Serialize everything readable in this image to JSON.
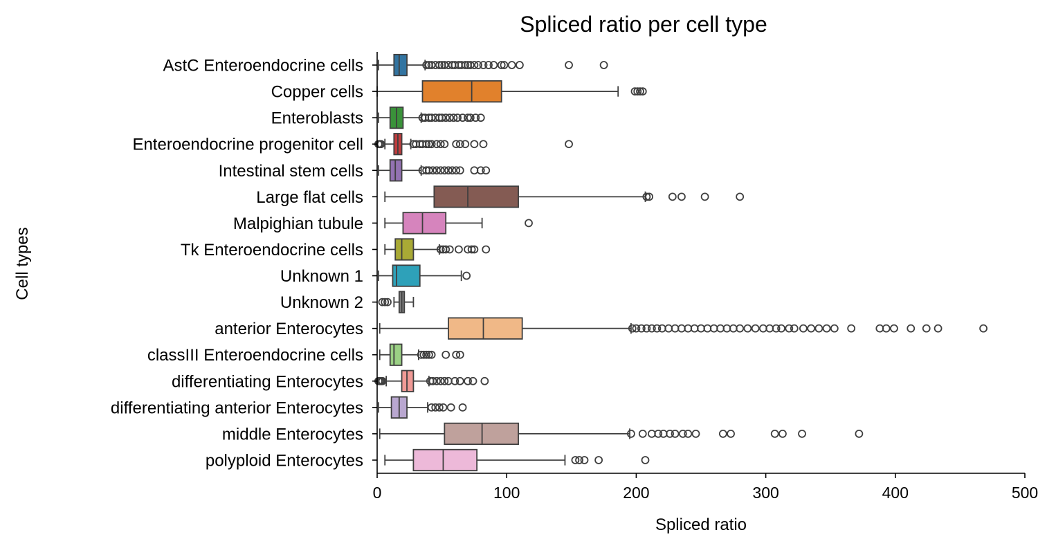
{
  "chart_data": {
    "type": "box",
    "orientation": "horizontal",
    "title": "Spliced ratio per cell type",
    "xlabel": "Spliced ratio",
    "ylabel": "Cell types",
    "xlim": [
      0,
      500
    ],
    "xticks": [
      0,
      100,
      200,
      300,
      400,
      500
    ],
    "grid": false,
    "legend": "none",
    "series": [
      {
        "category": "AstC Enteroendocrine cells",
        "color": "#3274a1",
        "min": 1,
        "q1": 13,
        "median": 17,
        "q3": 23,
        "max": 37,
        "outliers": [
          38,
          40,
          42,
          45,
          48,
          50,
          52,
          55,
          58,
          60,
          63,
          65,
          68,
          70,
          72,
          75,
          78,
          82,
          86,
          90,
          96,
          98,
          104,
          110,
          148,
          175
        ]
      },
      {
        "category": "Copper cells",
        "color": "#e1812c",
        "min": 0,
        "q1": 35,
        "median": 73,
        "q3": 96,
        "max": 186,
        "outliers": [
          199,
          201,
          203,
          205
        ]
      },
      {
        "category": "Enteroblasts",
        "color": "#3a923a",
        "min": 1,
        "q1": 10,
        "median": 15,
        "q3": 20,
        "max": 34,
        "outliers": [
          35,
          37,
          40,
          42,
          45,
          48,
          50,
          53,
          56,
          59,
          62,
          66,
          70,
          72,
          76,
          80
        ]
      },
      {
        "category": "Enteroendocrine progenitor cell",
        "color": "#c03d3e",
        "min": 6,
        "q1": 13,
        "median": 16,
        "q3": 19,
        "max": 26,
        "outliers": [
          1,
          2,
          3,
          28,
          30,
          33,
          35,
          38,
          40,
          42,
          46,
          49,
          52,
          61,
          64,
          68,
          75,
          82,
          148
        ]
      },
      {
        "category": "Intestinal stem cells",
        "color": "#9372b2",
        "min": 1,
        "q1": 10,
        "median": 14,
        "q3": 19,
        "max": 34,
        "outliers": [
          35,
          38,
          40,
          43,
          46,
          49,
          52,
          55,
          58,
          61,
          64,
          75,
          80,
          84
        ]
      },
      {
        "category": "Large flat cells",
        "color": "#845b53",
        "min": 6,
        "q1": 44,
        "median": 70,
        "q3": 109,
        "max": 207,
        "outliers": [
          208,
          210,
          228,
          235,
          253,
          280
        ]
      },
      {
        "category": "Malpighian tubule",
        "color": "#d684bd",
        "min": 6,
        "q1": 20,
        "median": 35,
        "q3": 53,
        "max": 81,
        "outliers": [
          117
        ]
      },
      {
        "category": "Tk Enteroendocrine cells",
        "color": "#a9aa35",
        "min": 6,
        "q1": 14,
        "median": 19,
        "q3": 28,
        "max": 48,
        "outliers": [
          49,
          51,
          53,
          56,
          63,
          70,
          73,
          75,
          84
        ]
      },
      {
        "category": "Unknown 1",
        "color": "#2ea1b9",
        "min": 1,
        "q1": 12,
        "median": 15,
        "q3": 33,
        "max": 65,
        "outliers": [
          69
        ]
      },
      {
        "category": "Unknown 2",
        "color": "#7f7f7f",
        "min": 13,
        "q1": 17,
        "median": 19,
        "q3": 21,
        "max": 28,
        "outliers": [
          4,
          6,
          8
        ]
      },
      {
        "category": "anterior Enterocytes",
        "color": "#f0b887",
        "min": 2,
        "q1": 55,
        "median": 82,
        "q3": 112,
        "max": 196,
        "outliers": [
          197,
          200,
          204,
          208,
          212,
          216,
          220,
          225,
          230,
          235,
          240,
          245,
          250,
          255,
          260,
          265,
          270,
          275,
          280,
          286,
          292,
          298,
          303,
          308,
          312,
          318,
          322,
          329,
          335,
          341,
          347,
          353,
          366,
          388,
          393,
          399,
          412,
          424,
          433,
          468
        ]
      },
      {
        "category": "classIII Enteroendocrine cells",
        "color": "#9bd185",
        "min": 2,
        "q1": 10,
        "median": 13,
        "q3": 19,
        "max": 32,
        "outliers": [
          34,
          36,
          38,
          40,
          42,
          53,
          61,
          64
        ]
      },
      {
        "category": "differentiating Enterocytes",
        "color": "#f09a96",
        "min": 7,
        "q1": 19,
        "median": 23,
        "q3": 28,
        "max": 40,
        "outliers": [
          1,
          2,
          3,
          4,
          41,
          43,
          46,
          49,
          52,
          55,
          60,
          64,
          70,
          74,
          83
        ]
      },
      {
        "category": "differentiating anterior Enterocytes",
        "color": "#b9a7d0",
        "min": 1,
        "q1": 11,
        "median": 17,
        "q3": 23,
        "max": 39,
        "outliers": [
          42,
          45,
          48,
          51,
          57,
          66
        ]
      },
      {
        "category": "middle Enterocytes",
        "color": "#bfa19c",
        "min": 2,
        "q1": 52,
        "median": 81,
        "q3": 109,
        "max": 195,
        "outliers": [
          196,
          205,
          212,
          217,
          221,
          226,
          230,
          236,
          240,
          246,
          267,
          273,
          307,
          313,
          328,
          372
        ]
      },
      {
        "category": "polyploid Enterocytes",
        "color": "#edb9d9",
        "min": 6,
        "q1": 28,
        "median": 51,
        "q3": 77,
        "max": 145,
        "outliers": [
          153,
          156,
          160,
          171,
          207
        ]
      }
    ]
  }
}
